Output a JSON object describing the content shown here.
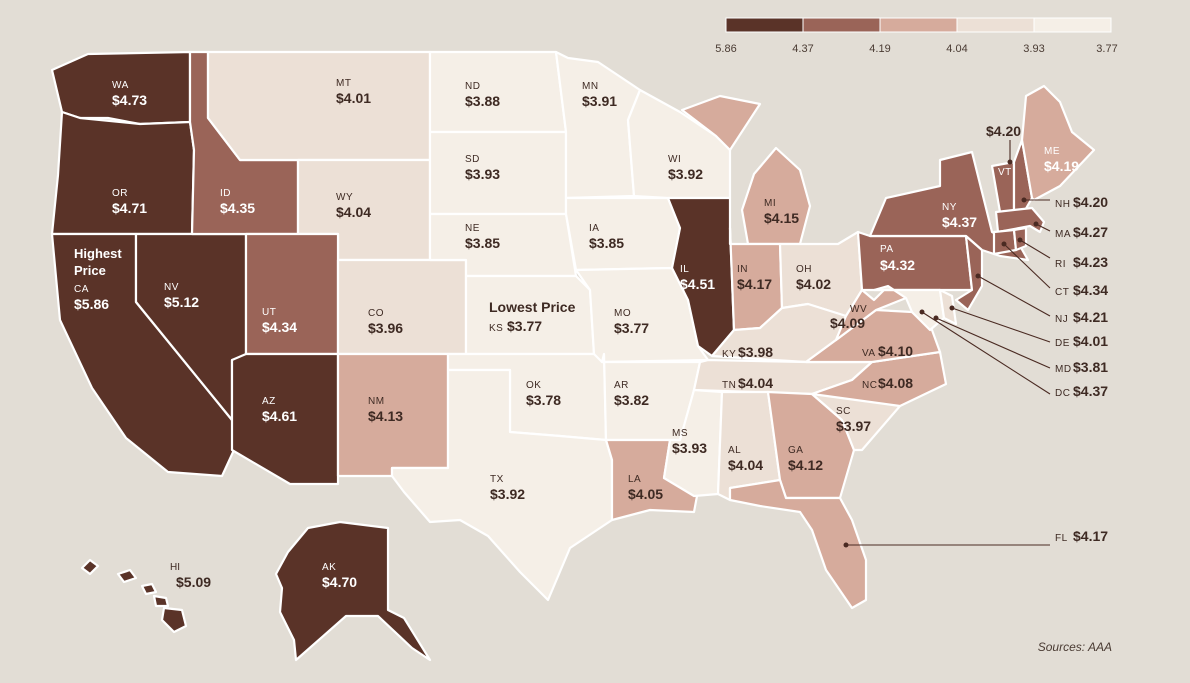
{
  "legend": {
    "ticks": [
      "5.86",
      "4.37",
      "4.19",
      "4.04",
      "3.93",
      "3.77"
    ],
    "colors": [
      "#5a3328",
      "#9a6458",
      "#d6ab9c",
      "#ece0d6",
      "#f5efe7"
    ]
  },
  "source": "Sources: AAA",
  "callouts": {
    "highest": {
      "line1": "Highest",
      "line2": "Price",
      "state": "CA",
      "price": "$5.86"
    },
    "lowest": {
      "line1": "Lowest Price",
      "state": "KS",
      "price": "$3.77"
    }
  },
  "states": {
    "WA": {
      "abbr": "WA",
      "price": "$4.73",
      "value": 4.73
    },
    "OR": {
      "abbr": "OR",
      "price": "$4.71",
      "value": 4.71
    },
    "CA": {
      "abbr": "CA",
      "price": "$5.86",
      "value": 5.86
    },
    "NV": {
      "abbr": "NV",
      "price": "$5.12",
      "value": 5.12
    },
    "ID": {
      "abbr": "ID",
      "price": "$4.35",
      "value": 4.35
    },
    "MT": {
      "abbr": "MT",
      "price": "$4.01",
      "value": 4.01
    },
    "WY": {
      "abbr": "WY",
      "price": "$4.04",
      "value": 4.04
    },
    "UT": {
      "abbr": "UT",
      "price": "$4.34",
      "value": 4.34
    },
    "AZ": {
      "abbr": "AZ",
      "price": "$4.61",
      "value": 4.61
    },
    "CO": {
      "abbr": "CO",
      "price": "$3.96",
      "value": 3.96
    },
    "NM": {
      "abbr": "NM",
      "price": "$4.13",
      "value": 4.13
    },
    "ND": {
      "abbr": "ND",
      "price": "$3.88",
      "value": 3.88
    },
    "SD": {
      "abbr": "SD",
      "price": "$3.93",
      "value": 3.93
    },
    "NE": {
      "abbr": "NE",
      "price": "$3.85",
      "value": 3.85
    },
    "KS": {
      "abbr": "KS",
      "price": "$3.77",
      "value": 3.77
    },
    "OK": {
      "abbr": "OK",
      "price": "$3.78",
      "value": 3.78
    },
    "TX": {
      "abbr": "TX",
      "price": "$3.92",
      "value": 3.92
    },
    "MN": {
      "abbr": "MN",
      "price": "$3.91",
      "value": 3.91
    },
    "IA": {
      "abbr": "IA",
      "price": "$3.85",
      "value": 3.85
    },
    "MO": {
      "abbr": "MO",
      "price": "$3.77",
      "value": 3.77
    },
    "AR": {
      "abbr": "AR",
      "price": "$3.82",
      "value": 3.82
    },
    "LA": {
      "abbr": "LA",
      "price": "$4.05",
      "value": 4.05
    },
    "WI": {
      "abbr": "WI",
      "price": "$3.92",
      "value": 3.92
    },
    "IL": {
      "abbr": "IL",
      "price": "$4.51",
      "value": 4.51
    },
    "MI": {
      "abbr": "MI",
      "price": "$4.15",
      "value": 4.15
    },
    "IN": {
      "abbr": "IN",
      "price": "$4.17",
      "value": 4.17
    },
    "OH": {
      "abbr": "OH",
      "price": "$4.02",
      "value": 4.02
    },
    "KY": {
      "abbr": "KY",
      "price": "$3.98",
      "value": 3.98
    },
    "TN": {
      "abbr": "TN",
      "price": "$4.04",
      "value": 4.04
    },
    "MS": {
      "abbr": "MS",
      "price": "$3.93",
      "value": 3.93
    },
    "AL": {
      "abbr": "AL",
      "price": "$4.04",
      "value": 4.04
    },
    "GA": {
      "abbr": "GA",
      "price": "$4.12",
      "value": 4.12
    },
    "FL": {
      "abbr": "FL",
      "price": "$4.17",
      "value": 4.17
    },
    "SC": {
      "abbr": "SC",
      "price": "$3.97",
      "value": 3.97
    },
    "NC": {
      "abbr": "NC",
      "price": "$4.08",
      "value": 4.08
    },
    "VA": {
      "abbr": "VA",
      "price": "$4.10",
      "value": 4.1
    },
    "WV": {
      "abbr": "WV",
      "price": "$4.09",
      "value": 4.09
    },
    "PA": {
      "abbr": "PA",
      "price": "$4.32",
      "value": 4.32
    },
    "NY": {
      "abbr": "NY",
      "price": "$4.37",
      "value": 4.37
    },
    "VT": {
      "abbr": "VT",
      "price": "$4.20",
      "value": 4.2
    },
    "NH": {
      "abbr": "NH",
      "price": "$4.20",
      "value": 4.2
    },
    "ME": {
      "abbr": "ME",
      "price": "$4.19",
      "value": 4.19
    },
    "MA": {
      "abbr": "MA",
      "price": "$4.27",
      "value": 4.27
    },
    "RI": {
      "abbr": "RI",
      "price": "$4.23",
      "value": 4.23
    },
    "CT": {
      "abbr": "CT",
      "price": "$4.34",
      "value": 4.34
    },
    "NJ": {
      "abbr": "NJ",
      "price": "$4.21",
      "value": 4.21
    },
    "DE": {
      "abbr": "DE",
      "price": "$4.01",
      "value": 4.01
    },
    "MD": {
      "abbr": "MD",
      "price": "$3.81",
      "value": 3.81
    },
    "DC": {
      "abbr": "DC",
      "price": "$4.37",
      "value": 4.37
    },
    "AK": {
      "abbr": "AK",
      "price": "$4.70",
      "value": 4.7
    },
    "HI": {
      "abbr": "HI",
      "price": "$5.09",
      "value": 5.09
    }
  }
}
